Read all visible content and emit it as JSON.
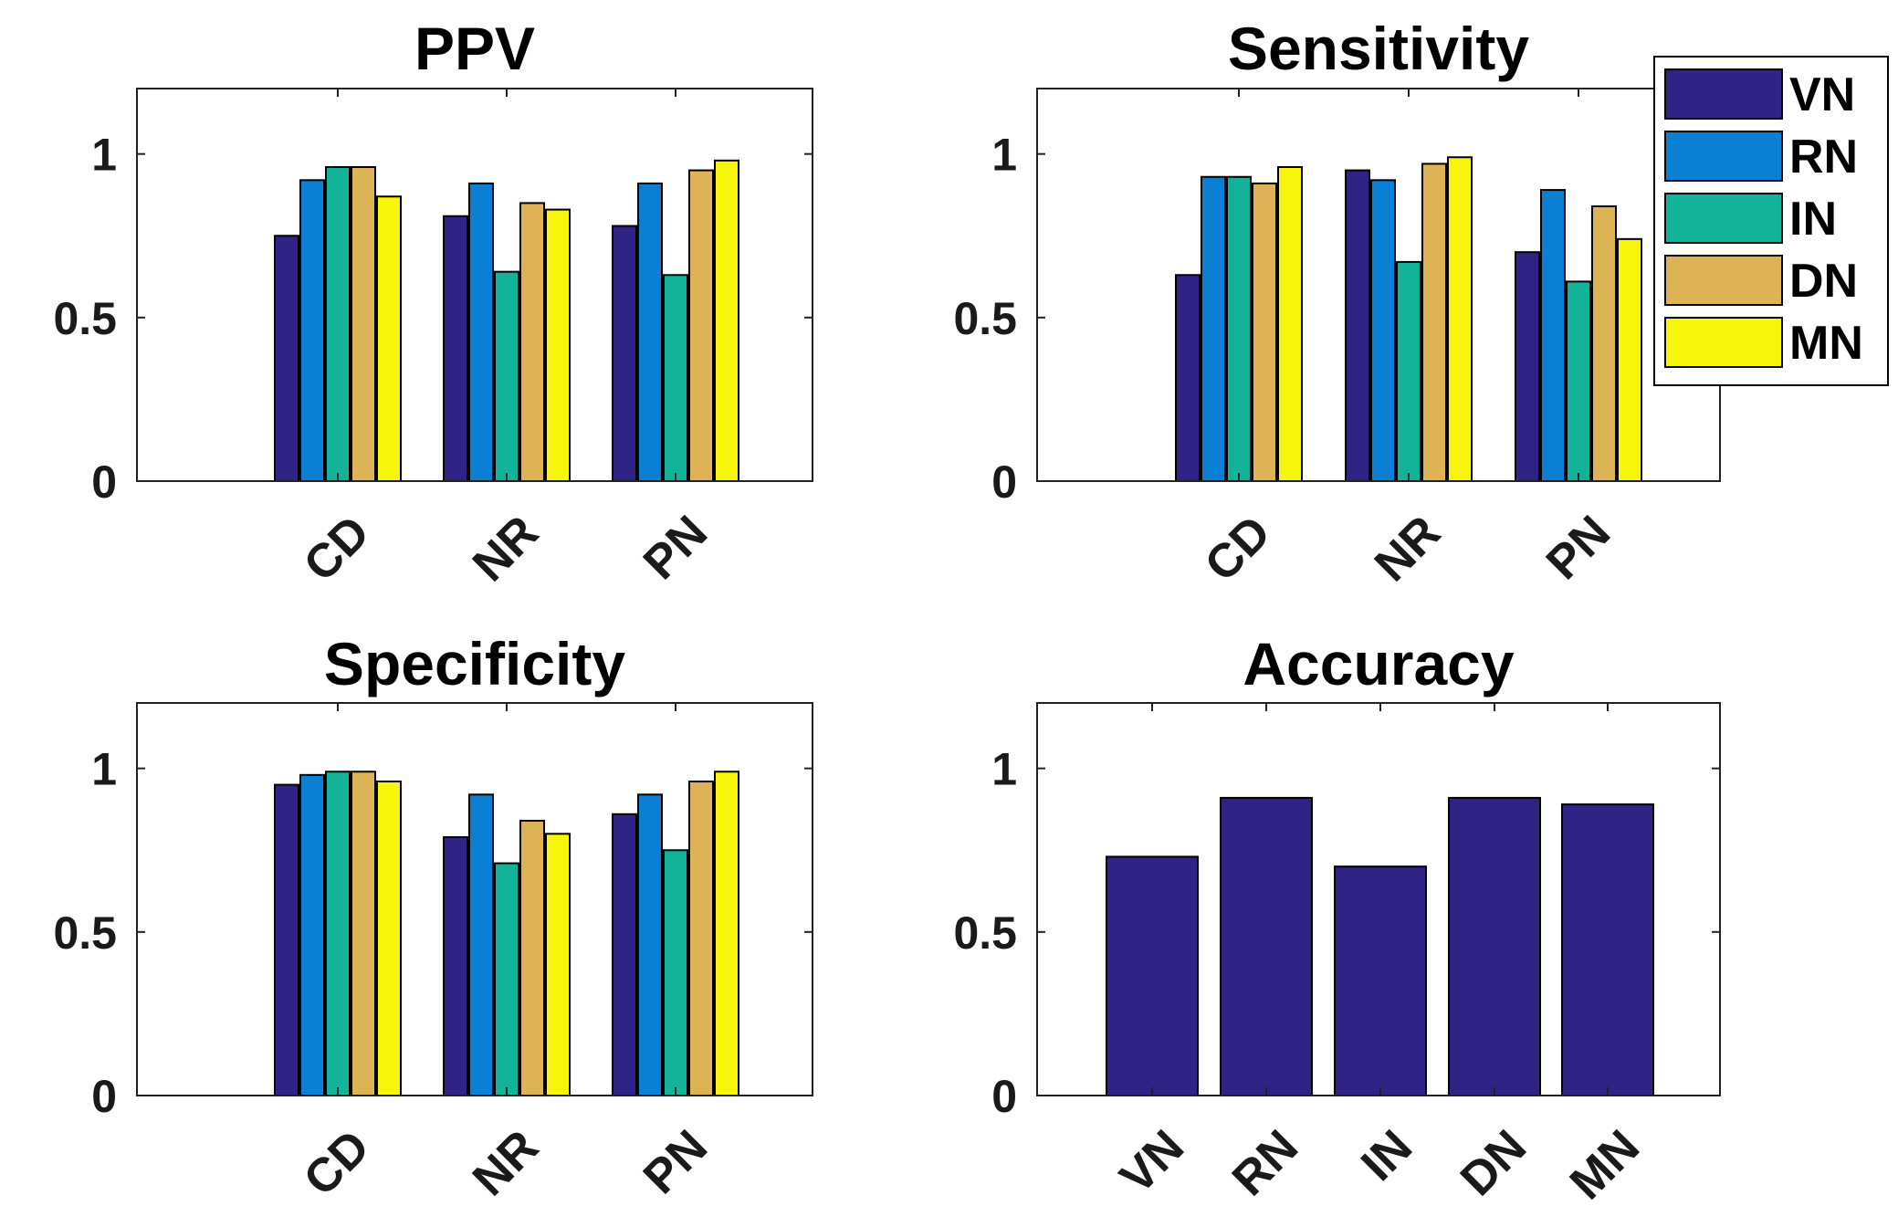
{
  "chart_data": [
    {
      "type": "bar",
      "title": "PPV",
      "categories": [
        "CD",
        "NR",
        "PN"
      ],
      "ylim": [
        0,
        1.2
      ],
      "yticks": [
        0,
        0.5,
        1
      ],
      "ytick_labels": [
        "0",
        "0.5",
        "1"
      ],
      "series": [
        {
          "name": "VN",
          "values": [
            0.75,
            0.81,
            0.78
          ]
        },
        {
          "name": "RN",
          "values": [
            0.92,
            0.91,
            0.91
          ]
        },
        {
          "name": "IN",
          "values": [
            0.96,
            0.64,
            0.63
          ]
        },
        {
          "name": "DN",
          "values": [
            0.96,
            0.85,
            0.95
          ]
        },
        {
          "name": "MN",
          "values": [
            0.87,
            0.83,
            0.98
          ]
        }
      ]
    },
    {
      "type": "bar",
      "title": "Sensitivity",
      "categories": [
        "CD",
        "NR",
        "PN"
      ],
      "ylim": [
        0,
        1.2
      ],
      "yticks": [
        0,
        0.5,
        1
      ],
      "ytick_labels": [
        "0",
        "0.5",
        "1"
      ],
      "legend": "top-right",
      "series": [
        {
          "name": "VN",
          "values": [
            0.63,
            0.95,
            0.7
          ]
        },
        {
          "name": "RN",
          "values": [
            0.93,
            0.92,
            0.89
          ]
        },
        {
          "name": "IN",
          "values": [
            0.93,
            0.67,
            0.61
          ]
        },
        {
          "name": "DN",
          "values": [
            0.91,
            0.97,
            0.84
          ]
        },
        {
          "name": "MN",
          "values": [
            0.96,
            0.99,
            0.74
          ]
        }
      ]
    },
    {
      "type": "bar",
      "title": "Specificity",
      "categories": [
        "CD",
        "NR",
        "PN"
      ],
      "ylim": [
        0,
        1.2
      ],
      "yticks": [
        0,
        0.5,
        1
      ],
      "ytick_labels": [
        "0",
        "0.5",
        "1"
      ],
      "series": [
        {
          "name": "VN",
          "values": [
            0.95,
            0.79,
            0.86
          ]
        },
        {
          "name": "RN",
          "values": [
            0.98,
            0.92,
            0.92
          ]
        },
        {
          "name": "IN",
          "values": [
            0.99,
            0.71,
            0.75
          ]
        },
        {
          "name": "DN",
          "values": [
            0.99,
            0.84,
            0.96
          ]
        },
        {
          "name": "MN",
          "values": [
            0.96,
            0.8,
            0.99
          ]
        }
      ]
    },
    {
      "type": "bar",
      "title": "Accuracy",
      "categories": [
        "VN",
        "RN",
        "IN",
        "DN",
        "MN"
      ],
      "ylim": [
        0,
        1.2
      ],
      "yticks": [
        0,
        0.5,
        1
      ],
      "ytick_labels": [
        "0",
        "0.5",
        "1"
      ],
      "series": [
        {
          "name": "Accuracy",
          "values": [
            0.73,
            0.91,
            0.7,
            0.91,
            0.89
          ]
        }
      ]
    }
  ],
  "legend": {
    "items": [
      {
        "label": "VN",
        "color": "#2f2386"
      },
      {
        "label": "RN",
        "color": "#0b7fd4"
      },
      {
        "label": "IN",
        "color": "#12b399"
      },
      {
        "label": "DN",
        "color": "#ddb356"
      },
      {
        "label": "MN",
        "color": "#f6f50b"
      }
    ]
  },
  "colors": {
    "series": [
      "#2f2386",
      "#0b7fd4",
      "#12b399",
      "#ddb356",
      "#f6f50b"
    ],
    "single": "#2f2386"
  }
}
